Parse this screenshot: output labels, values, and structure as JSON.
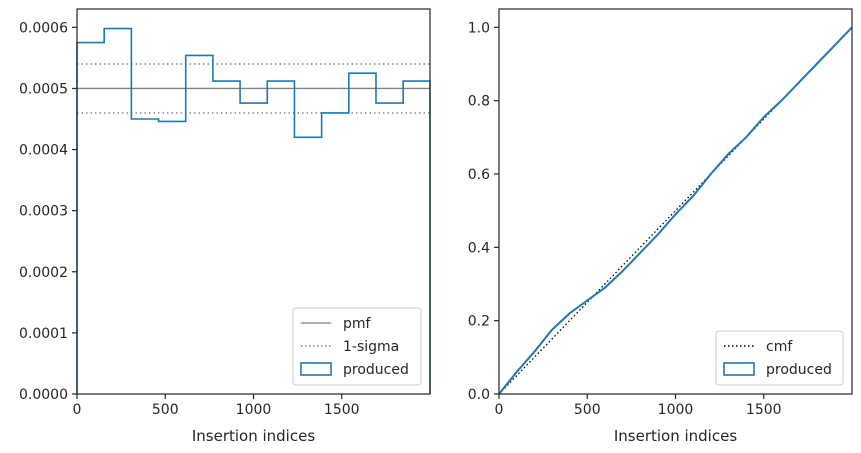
{
  "chart_data": [
    {
      "type": "line",
      "xlabel": "Insertion indices",
      "ylabel": "",
      "xlim": [
        0,
        2000
      ],
      "ylim": [
        0,
        0.00063
      ],
      "x_ticks": [
        0,
        500,
        1000,
        1500
      ],
      "x_tick_labels": [
        "0",
        "500",
        "1000",
        "1500"
      ],
      "y_ticks": [
        0,
        0.0001,
        0.0002,
        0.0003,
        0.0004,
        0.0005,
        0.0006
      ],
      "y_tick_labels": [
        "0.0000",
        "0.0001",
        "0.0002",
        "0.0003",
        "0.0004",
        "0.0005",
        "0.0006"
      ],
      "grid": false,
      "legend_position": "lower-right",
      "pmf": 0.0005,
      "sigma_band": [
        0.00046,
        0.00054
      ],
      "histogram": {
        "bin_edges": [
          0,
          154,
          308,
          462,
          616,
          770,
          924,
          1078,
          1232,
          1386,
          1540,
          1694,
          1848,
          2000
        ],
        "values": [
          0.000575,
          0.000598,
          0.00045,
          0.000446,
          0.000554,
          0.000512,
          0.000476,
          0.000512,
          0.00042,
          0.00046,
          0.000525,
          0.000476,
          0.000512
        ]
      },
      "legend": [
        {
          "label": "pmf",
          "style": "solid-line",
          "color": "#808080"
        },
        {
          "label": "1-sigma",
          "style": "dotted-line",
          "color": "#808080"
        },
        {
          "label": "produced",
          "style": "box",
          "color": "#1f77b4"
        }
      ]
    },
    {
      "type": "line",
      "xlabel": "Insertion indices",
      "ylabel": "",
      "xlim": [
        0,
        2000
      ],
      "ylim": [
        0,
        1.05
      ],
      "x_ticks": [
        0,
        500,
        1000,
        1500
      ],
      "x_tick_labels": [
        "0",
        "500",
        "1000",
        "1500"
      ],
      "y_ticks": [
        0,
        0.2,
        0.4,
        0.6,
        0.8,
        1.0
      ],
      "y_tick_labels": [
        "0.0",
        "0.2",
        "0.4",
        "0.6",
        "0.8",
        "1.0"
      ],
      "grid": false,
      "legend_position": "lower-right",
      "cmf": {
        "x": [
          0,
          2000
        ],
        "y": [
          0,
          1.0
        ]
      },
      "produced": {
        "x": [
          0,
          100,
          200,
          300,
          400,
          500,
          600,
          700,
          800,
          900,
          1000,
          1100,
          1200,
          1300,
          1400,
          1500,
          1600,
          1700,
          1800,
          1900,
          2000
        ],
        "y": [
          0,
          0.06,
          0.115,
          0.175,
          0.22,
          0.255,
          0.29,
          0.335,
          0.385,
          0.435,
          0.49,
          0.54,
          0.6,
          0.655,
          0.7,
          0.755,
          0.8,
          0.85,
          0.9,
          0.95,
          1.0
        ]
      },
      "legend": [
        {
          "label": "cmf",
          "style": "dotted-line",
          "color": "#000000"
        },
        {
          "label": "produced",
          "style": "box",
          "color": "#1f77b4"
        }
      ]
    }
  ]
}
